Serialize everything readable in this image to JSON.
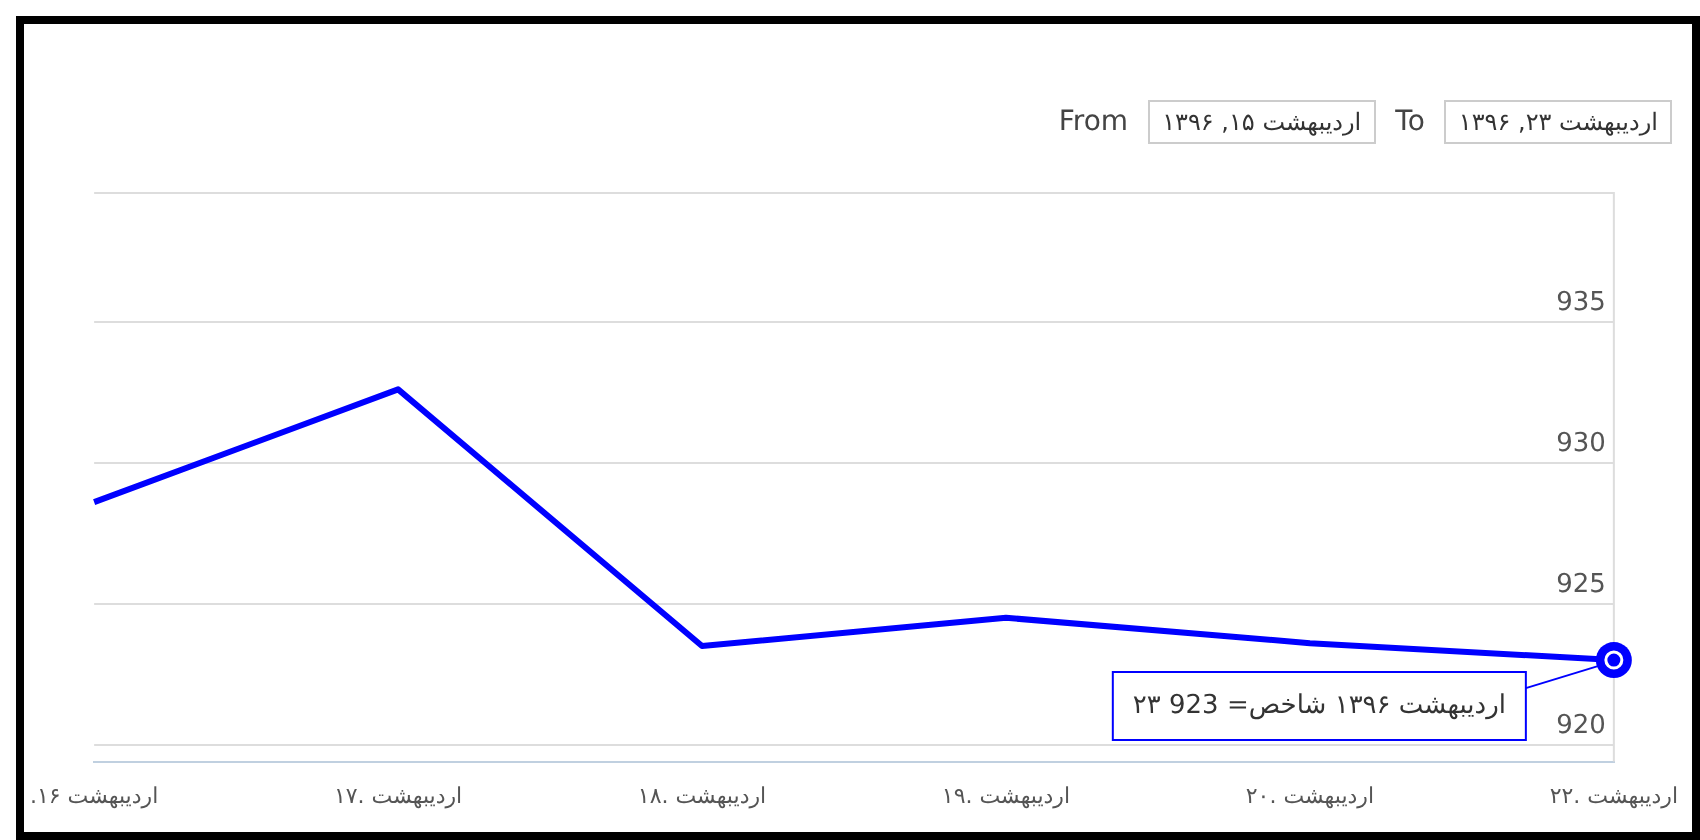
{
  "chart_data": {
    "type": "line",
    "categories": [
      ".۱۶ اردیبهشت",
      "۱۷. اردیبهشت",
      "۱۸. اردیبهشت",
      "۱۹. اردیبهشت",
      "۲۰. اردیبهشت",
      "۲۲. اردیبهشت"
    ],
    "series": [
      {
        "color": "#0000ff",
        "values": [
          928.6,
          932.6,
          923.5,
          924.5,
          923.6,
          923
        ]
      }
    ],
    "ylim": [
      919.4,
      939.6
    ],
    "yticks": [
      920,
      925,
      930,
      935
    ],
    "grid": "y",
    "legend": false,
    "marker": "none",
    "annotations": [
      "From",
      "اردیبهشت ۱۵, ۱۳۹۶",
      "To",
      "اردیبهشت ۲۳, ۱۳۹۶",
      {
        "text": "۲۳ اردیبهشت ۱۳۹۶ شاخص= 923",
        "x": "۲۲. اردیبهشت",
        "y": 923
      }
    ]
  }
}
